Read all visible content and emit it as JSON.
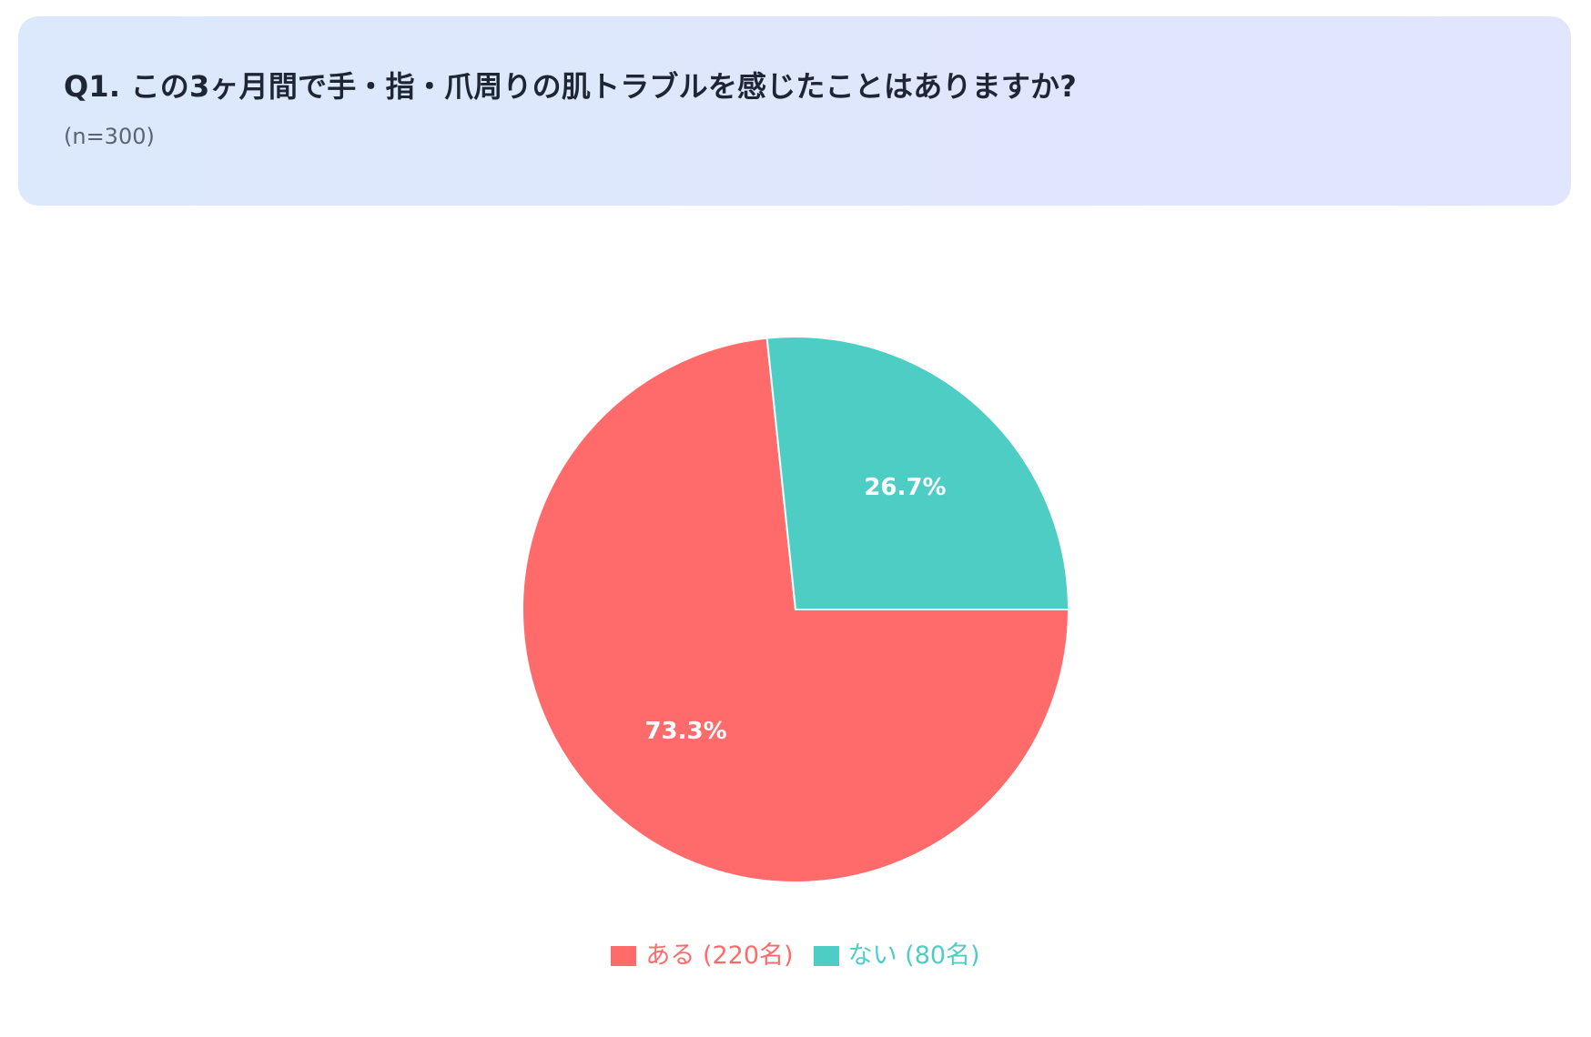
{
  "header": {
    "title": "Q1. この3ヶ月間で手・指・爪周りの肌トラブルを感じたことはありますか?",
    "subtitle": "(n=300)"
  },
  "chart_data": {
    "type": "pie",
    "categories": [
      "ある",
      "ない"
    ],
    "values": [
      220,
      80
    ],
    "percent_labels": [
      "73.3%",
      "26.7%"
    ],
    "legend_labels": [
      "ある (220名)",
      "ない (80名)"
    ],
    "colors": [
      "#ff6b6b",
      "#4ecdc4"
    ],
    "label_color": "#ffffff",
    "start_angle": "3 o'clock",
    "direction": "clockwise",
    "legend_position": "bottom-center"
  }
}
